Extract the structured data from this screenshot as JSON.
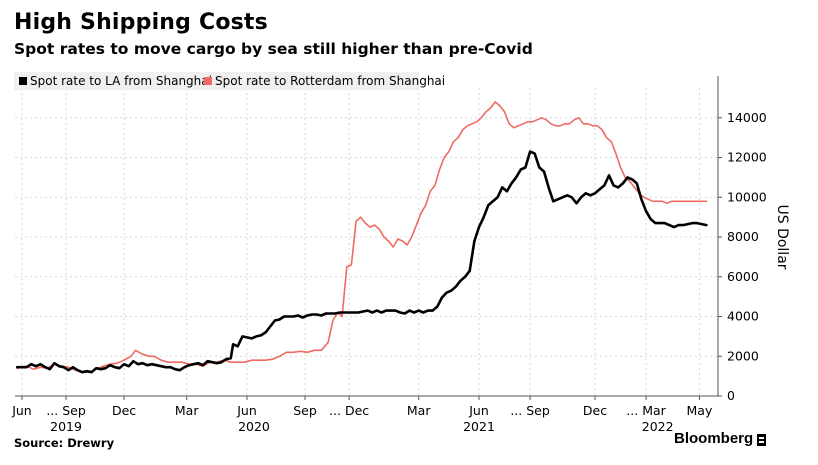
{
  "header": {
    "title": "High Shipping Costs",
    "subtitle": "Spot rates to move cargo by sea still higher than pre-Covid"
  },
  "footer": {
    "source": "Source: Drewry",
    "brand": "Bloomberg"
  },
  "colors": {
    "la_series": "#000000",
    "rotterdam_series": "#ee6b62",
    "grid": "#d8d8d8",
    "axis": "#555555",
    "legend_bg": "#f0f0f0"
  },
  "chart_data": {
    "type": "line",
    "ylabel": "US Dollar",
    "ylim": [
      0,
      15500
    ],
    "xlim": [
      2019.42,
      2022.45
    ],
    "yticks": [
      0,
      2000,
      4000,
      6000,
      8000,
      10000,
      12000,
      14000
    ],
    "ytick_labels": [
      "0",
      "2000",
      "4000",
      "6000",
      "8000",
      "10000",
      "12000",
      "14000"
    ],
    "xticks": [
      {
        "t": 2019.45,
        "label": "Jun"
      },
      {
        "t": 2019.64,
        "label": "... Sep"
      },
      {
        "t": 2019.89,
        "label": "Dec"
      },
      {
        "t": 2020.16,
        "label": "Mar"
      },
      {
        "t": 2020.42,
        "label": "Jun"
      },
      {
        "t": 2020.67,
        "label": "Sep"
      },
      {
        "t": 2020.86,
        "label": "... Dec"
      },
      {
        "t": 2021.16,
        "label": "Mar"
      },
      {
        "t": 2021.42,
        "label": "Jun"
      },
      {
        "t": 2021.64,
        "label": "... Sep"
      },
      {
        "t": 2021.92,
        "label": "Dec"
      },
      {
        "t": 2022.14,
        "label": "... Mar"
      },
      {
        "t": 2022.37,
        "label": "May"
      }
    ],
    "year_labels": [
      {
        "t": 2019.64,
        "label": "2019"
      },
      {
        "t": 2020.45,
        "label": "2020"
      },
      {
        "t": 2021.42,
        "label": "2021"
      },
      {
        "t": 2022.19,
        "label": "2022"
      }
    ],
    "legend": [
      "Spot rate to LA from Shanghai",
      "Spot rate to Rotterdam from Shanghai"
    ],
    "series": [
      {
        "name": "Spot rate to LA from Shanghai",
        "points": [
          [
            2019.43,
            1450
          ],
          [
            2019.47,
            1450
          ],
          [
            2019.49,
            1600
          ],
          [
            2019.51,
            1500
          ],
          [
            2019.53,
            1600
          ],
          [
            2019.55,
            1450
          ],
          [
            2019.57,
            1350
          ],
          [
            2019.59,
            1650
          ],
          [
            2019.61,
            1500
          ],
          [
            2019.63,
            1450
          ],
          [
            2019.65,
            1300
          ],
          [
            2019.67,
            1450
          ],
          [
            2019.69,
            1300
          ],
          [
            2019.71,
            1200
          ],
          [
            2019.73,
            1250
          ],
          [
            2019.75,
            1200
          ],
          [
            2019.77,
            1400
          ],
          [
            2019.79,
            1350
          ],
          [
            2019.81,
            1400
          ],
          [
            2019.83,
            1550
          ],
          [
            2019.85,
            1450
          ],
          [
            2019.87,
            1400
          ],
          [
            2019.89,
            1600
          ],
          [
            2019.91,
            1500
          ],
          [
            2019.93,
            1750
          ],
          [
            2019.95,
            1600
          ],
          [
            2019.97,
            1650
          ],
          [
            2019.99,
            1550
          ],
          [
            2020.01,
            1600
          ],
          [
            2020.03,
            1550
          ],
          [
            2020.05,
            1500
          ],
          [
            2020.07,
            1450
          ],
          [
            2020.09,
            1450
          ],
          [
            2020.11,
            1350
          ],
          [
            2020.13,
            1300
          ],
          [
            2020.15,
            1450
          ],
          [
            2020.17,
            1550
          ],
          [
            2020.19,
            1600
          ],
          [
            2020.21,
            1650
          ],
          [
            2020.23,
            1550
          ],
          [
            2020.25,
            1750
          ],
          [
            2020.27,
            1700
          ],
          [
            2020.29,
            1650
          ],
          [
            2020.31,
            1700
          ],
          [
            2020.33,
            1850
          ],
          [
            2020.35,
            1900
          ],
          [
            2020.36,
            2600
          ],
          [
            2020.38,
            2500
          ],
          [
            2020.4,
            3000
          ],
          [
            2020.42,
            2950
          ],
          [
            2020.44,
            2900
          ],
          [
            2020.46,
            3000
          ],
          [
            2020.48,
            3050
          ],
          [
            2020.5,
            3200
          ],
          [
            2020.52,
            3500
          ],
          [
            2020.54,
            3800
          ],
          [
            2020.56,
            3850
          ],
          [
            2020.58,
            4000
          ],
          [
            2020.6,
            4000
          ],
          [
            2020.62,
            4000
          ],
          [
            2020.64,
            4050
          ],
          [
            2020.66,
            3950
          ],
          [
            2020.68,
            4050
          ],
          [
            2020.7,
            4100
          ],
          [
            2020.72,
            4100
          ],
          [
            2020.74,
            4050
          ],
          [
            2020.76,
            4150
          ],
          [
            2020.78,
            4150
          ],
          [
            2020.8,
            4150
          ],
          [
            2020.82,
            4200
          ],
          [
            2020.84,
            4200
          ],
          [
            2020.86,
            4200
          ],
          [
            2020.88,
            4200
          ],
          [
            2020.9,
            4200
          ],
          [
            2020.92,
            4250
          ],
          [
            2020.94,
            4300
          ],
          [
            2020.96,
            4200
          ],
          [
            2020.98,
            4300
          ],
          [
            2021.0,
            4200
          ],
          [
            2021.02,
            4300
          ],
          [
            2021.04,
            4300
          ],
          [
            2021.06,
            4300
          ],
          [
            2021.08,
            4200
          ],
          [
            2021.1,
            4150
          ],
          [
            2021.12,
            4300
          ],
          [
            2021.14,
            4200
          ],
          [
            2021.16,
            4300
          ],
          [
            2021.18,
            4200
          ],
          [
            2021.2,
            4300
          ],
          [
            2021.22,
            4300
          ],
          [
            2021.24,
            4500
          ],
          [
            2021.26,
            4950
          ],
          [
            2021.28,
            5200
          ],
          [
            2021.3,
            5300
          ],
          [
            2021.32,
            5500
          ],
          [
            2021.34,
            5800
          ],
          [
            2021.36,
            6000
          ],
          [
            2021.38,
            6300
          ],
          [
            2021.4,
            7800
          ],
          [
            2021.42,
            8500
          ],
          [
            2021.44,
            9000
          ],
          [
            2021.46,
            9600
          ],
          [
            2021.48,
            9800
          ],
          [
            2021.5,
            10000
          ],
          [
            2021.52,
            10500
          ],
          [
            2021.54,
            10300
          ],
          [
            2021.56,
            10700
          ],
          [
            2021.58,
            11000
          ],
          [
            2021.6,
            11400
          ],
          [
            2021.62,
            11500
          ],
          [
            2021.64,
            12300
          ],
          [
            2021.66,
            12200
          ],
          [
            2021.68,
            11500
          ],
          [
            2021.7,
            11300
          ],
          [
            2021.72,
            10500
          ],
          [
            2021.74,
            9800
          ],
          [
            2021.76,
            9900
          ],
          [
            2021.78,
            10000
          ],
          [
            2021.8,
            10100
          ],
          [
            2021.82,
            10000
          ],
          [
            2021.84,
            9700
          ],
          [
            2021.86,
            10000
          ],
          [
            2021.88,
            10200
          ],
          [
            2021.9,
            10100
          ],
          [
            2021.92,
            10200
          ],
          [
            2021.94,
            10400
          ],
          [
            2021.96,
            10600
          ],
          [
            2021.98,
            11100
          ],
          [
            2022.0,
            10600
          ],
          [
            2022.02,
            10500
          ],
          [
            2022.04,
            10700
          ],
          [
            2022.06,
            11000
          ],
          [
            2022.08,
            10900
          ],
          [
            2022.1,
            10700
          ],
          [
            2022.12,
            9900
          ],
          [
            2022.14,
            9300
          ],
          [
            2022.16,
            8900
          ],
          [
            2022.18,
            8700
          ],
          [
            2022.2,
            8700
          ],
          [
            2022.22,
            8700
          ],
          [
            2022.24,
            8600
          ],
          [
            2022.26,
            8500
          ],
          [
            2022.28,
            8600
          ],
          [
            2022.3,
            8600
          ],
          [
            2022.32,
            8650
          ],
          [
            2022.34,
            8700
          ],
          [
            2022.36,
            8700
          ],
          [
            2022.38,
            8650
          ],
          [
            2022.4,
            8600
          ]
        ]
      },
      {
        "name": "Spot rate to Rotterdam from Shanghai",
        "points": [
          [
            2019.43,
            1400
          ],
          [
            2019.47,
            1500
          ],
          [
            2019.5,
            1350
          ],
          [
            2019.53,
            1450
          ],
          [
            2019.56,
            1400
          ],
          [
            2019.59,
            1600
          ],
          [
            2019.62,
            1500
          ],
          [
            2019.65,
            1450
          ],
          [
            2019.68,
            1300
          ],
          [
            2019.71,
            1200
          ],
          [
            2019.74,
            1200
          ],
          [
            2019.77,
            1350
          ],
          [
            2019.8,
            1500
          ],
          [
            2019.83,
            1600
          ],
          [
            2019.86,
            1650
          ],
          [
            2019.89,
            1800
          ],
          [
            2019.92,
            2000
          ],
          [
            2019.94,
            2300
          ],
          [
            2019.97,
            2100
          ],
          [
            2020.0,
            2000
          ],
          [
            2020.02,
            2000
          ],
          [
            2020.05,
            1800
          ],
          [
            2020.08,
            1700
          ],
          [
            2020.11,
            1700
          ],
          [
            2020.14,
            1700
          ],
          [
            2020.17,
            1600
          ],
          [
            2020.2,
            1600
          ],
          [
            2020.23,
            1500
          ],
          [
            2020.26,
            1700
          ],
          [
            2020.29,
            1700
          ],
          [
            2020.32,
            1800
          ],
          [
            2020.35,
            1700
          ],
          [
            2020.38,
            1700
          ],
          [
            2020.41,
            1700
          ],
          [
            2020.44,
            1800
          ],
          [
            2020.47,
            1800
          ],
          [
            2020.5,
            1800
          ],
          [
            2020.53,
            1850
          ],
          [
            2020.56,
            2000
          ],
          [
            2020.59,
            2200
          ],
          [
            2020.62,
            2200
          ],
          [
            2020.65,
            2250
          ],
          [
            2020.68,
            2200
          ],
          [
            2020.71,
            2300
          ],
          [
            2020.74,
            2300
          ],
          [
            2020.77,
            2700
          ],
          [
            2020.79,
            3800
          ],
          [
            2020.81,
            4200
          ],
          [
            2020.83,
            4000
          ],
          [
            2020.85,
            6500
          ],
          [
            2020.87,
            6600
          ],
          [
            2020.89,
            8800
          ],
          [
            2020.91,
            9000
          ],
          [
            2020.93,
            8700
          ],
          [
            2020.95,
            8500
          ],
          [
            2020.97,
            8600
          ],
          [
            2020.99,
            8400
          ],
          [
            2021.01,
            8000
          ],
          [
            2021.03,
            7800
          ],
          [
            2021.05,
            7500
          ],
          [
            2021.07,
            7900
          ],
          [
            2021.09,
            7800
          ],
          [
            2021.11,
            7600
          ],
          [
            2021.13,
            8000
          ],
          [
            2021.15,
            8600
          ],
          [
            2021.17,
            9200
          ],
          [
            2021.19,
            9600
          ],
          [
            2021.21,
            10300
          ],
          [
            2021.23,
            10600
          ],
          [
            2021.25,
            11400
          ],
          [
            2021.27,
            12000
          ],
          [
            2021.29,
            12300
          ],
          [
            2021.31,
            12800
          ],
          [
            2021.33,
            13000
          ],
          [
            2021.35,
            13400
          ],
          [
            2021.37,
            13600
          ],
          [
            2021.39,
            13700
          ],
          [
            2021.41,
            13800
          ],
          [
            2021.43,
            14000
          ],
          [
            2021.45,
            14300
          ],
          [
            2021.47,
            14500
          ],
          [
            2021.49,
            14800
          ],
          [
            2021.51,
            14600
          ],
          [
            2021.53,
            14300
          ],
          [
            2021.55,
            13700
          ],
          [
            2021.57,
            13500
          ],
          [
            2021.59,
            13600
          ],
          [
            2021.61,
            13700
          ],
          [
            2021.63,
            13800
          ],
          [
            2021.65,
            13800
          ],
          [
            2021.67,
            13900
          ],
          [
            2021.69,
            14000
          ],
          [
            2021.71,
            13900
          ],
          [
            2021.73,
            13700
          ],
          [
            2021.75,
            13600
          ],
          [
            2021.77,
            13600
          ],
          [
            2021.79,
            13700
          ],
          [
            2021.81,
            13700
          ],
          [
            2021.83,
            13900
          ],
          [
            2021.85,
            14000
          ],
          [
            2021.87,
            13700
          ],
          [
            2021.89,
            13700
          ],
          [
            2021.91,
            13600
          ],
          [
            2021.93,
            13600
          ],
          [
            2021.95,
            13400
          ],
          [
            2021.97,
            13000
          ],
          [
            2021.99,
            12800
          ],
          [
            2022.01,
            12200
          ],
          [
            2022.03,
            11500
          ],
          [
            2022.05,
            11000
          ],
          [
            2022.07,
            10800
          ],
          [
            2022.09,
            10500
          ],
          [
            2022.11,
            10200
          ],
          [
            2022.13,
            10000
          ],
          [
            2022.15,
            9900
          ],
          [
            2022.17,
            9800
          ],
          [
            2022.19,
            9800
          ],
          [
            2022.21,
            9800
          ],
          [
            2022.23,
            9700
          ],
          [
            2022.25,
            9800
          ],
          [
            2022.27,
            9800
          ],
          [
            2022.29,
            9800
          ],
          [
            2022.31,
            9800
          ],
          [
            2022.33,
            9800
          ],
          [
            2022.36,
            9800
          ],
          [
            2022.38,
            9800
          ],
          [
            2022.4,
            9800
          ]
        ]
      }
    ]
  }
}
